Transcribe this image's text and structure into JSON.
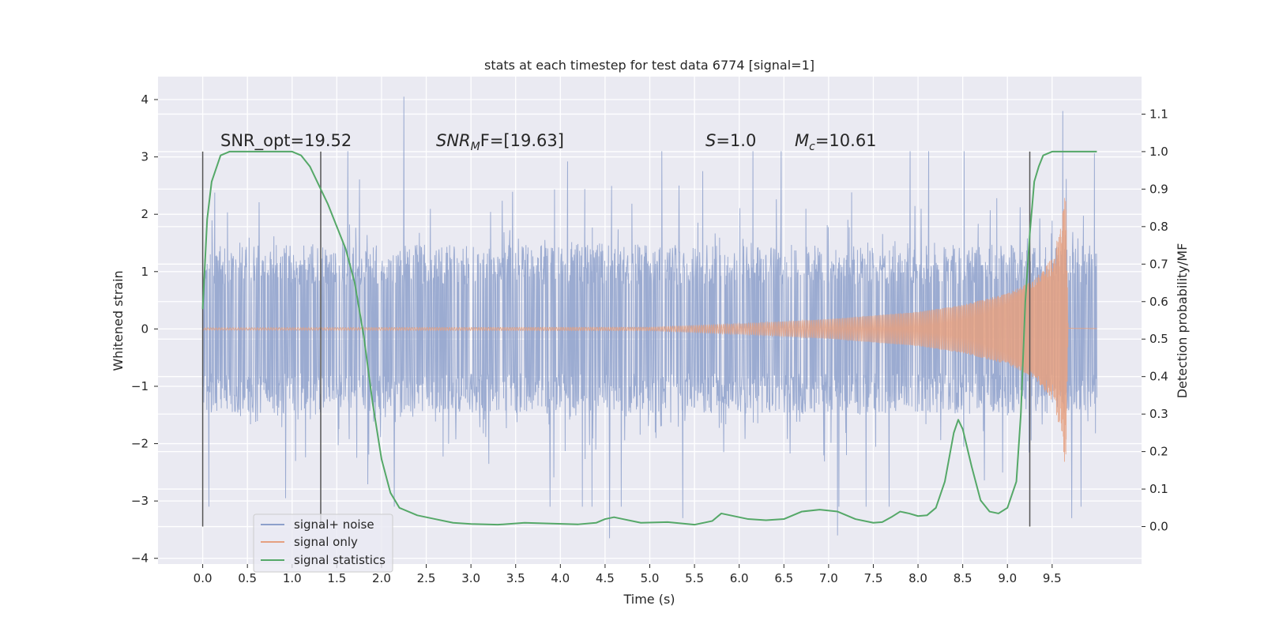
{
  "chart_data": {
    "type": "line",
    "title": "stats at each timestep for test data 6774 [signal=1]",
    "xlabel": "Time (s)",
    "ylabel": "Whitened strain",
    "ylabel_right": "Detection probability/MF",
    "xlim": [
      -0.5,
      10.5
    ],
    "ylim": [
      -4.1,
      4.4
    ],
    "ylim_right": [
      -0.1,
      1.2
    ],
    "x_ticks": [
      "0.0",
      "0.5",
      "1.0",
      "1.5",
      "2.0",
      "2.5",
      "3.0",
      "3.5",
      "4.0",
      "4.5",
      "5.0",
      "5.5",
      "6.0",
      "6.5",
      "7.0",
      "7.5",
      "8.0",
      "8.5",
      "9.0",
      "9.5"
    ],
    "y_ticks": [
      "4",
      "3",
      "2",
      "1",
      "0",
      "−1",
      "−2",
      "−3",
      "−4"
    ],
    "y_ticks_right": [
      "1.1",
      "1.0",
      "0.9",
      "0.8",
      "0.7",
      "0.6",
      "0.5",
      "0.4",
      "0.3",
      "0.2",
      "0.1",
      "0.0"
    ],
    "grid": true,
    "legend_position": "lower-left",
    "colors": {
      "noise": "#8da0cb",
      "signal": "#e5a080",
      "stats": "#55a868",
      "background": "#eaeaf2",
      "marker": "#555555"
    },
    "annotations": {
      "snr_opt": "SNR_opt=19.52",
      "snr_mf_main": "SNR",
      "snr_mf_sub": "M",
      "snr_mf_rest": "F=[19.63]",
      "s_main": "S",
      "s_rest": "=1.0",
      "mc_main": "M",
      "mc_sub": "c",
      "mc_rest": "=10.61"
    },
    "vertical_markers": [
      0.0,
      1.32,
      9.25
    ],
    "series": [
      {
        "name": "signal+ noise",
        "description": "whitened strain, noise dominated, amplitude about ±2.5 with spikes to 4",
        "x_range": [
          0.0,
          10.0
        ],
        "envelope": [
          1.4,
          2.5
        ],
        "peaks": [
          [
            2.25,
            4.05
          ],
          [
            9.62,
            3.8
          ],
          [
            4.55,
            -3.65
          ],
          [
            7.1,
            -3.6
          ],
          [
            5.37,
            -3.3
          ],
          [
            9.72,
            -3.3
          ]
        ]
      },
      {
        "name": "signal only",
        "description": "chirp signal growing toward merger",
        "x": [
          0.0,
          5.0,
          6.0,
          7.0,
          8.0,
          8.5,
          9.0,
          9.3,
          9.5,
          9.6,
          9.65,
          9.68,
          10.0
        ],
        "amplitude": [
          0.02,
          0.03,
          0.09,
          0.17,
          0.3,
          0.42,
          0.62,
          0.85,
          1.25,
          1.8,
          2.55,
          0.03,
          0.02
        ]
      },
      {
        "name": "signal statistics",
        "axis": "right",
        "x": [
          0.0,
          0.05,
          0.1,
          0.2,
          0.3,
          0.5,
          0.8,
          1.0,
          1.1,
          1.2,
          1.3,
          1.4,
          1.5,
          1.6,
          1.7,
          1.8,
          1.9,
          2.0,
          2.1,
          2.2,
          2.4,
          2.6,
          2.8,
          3.0,
          3.3,
          3.6,
          3.9,
          4.2,
          4.4,
          4.5,
          4.6,
          4.7,
          4.9,
          5.2,
          5.5,
          5.7,
          5.8,
          5.9,
          6.1,
          6.3,
          6.5,
          6.7,
          6.9,
          7.1,
          7.3,
          7.5,
          7.6,
          7.7,
          7.8,
          7.9,
          8.0,
          8.1,
          8.2,
          8.3,
          8.4,
          8.45,
          8.5,
          8.6,
          8.7,
          8.8,
          8.9,
          9.0,
          9.1,
          9.15,
          9.2,
          9.25,
          9.3,
          9.35,
          9.4,
          9.5,
          9.6,
          9.7,
          10.0
        ],
        "y": [
          0.58,
          0.82,
          0.92,
          0.99,
          1.0,
          1.0,
          1.0,
          1.0,
          0.99,
          0.96,
          0.91,
          0.86,
          0.8,
          0.74,
          0.65,
          0.51,
          0.33,
          0.18,
          0.09,
          0.05,
          0.03,
          0.02,
          0.01,
          0.007,
          0.005,
          0.01,
          0.008,
          0.006,
          0.01,
          0.02,
          0.025,
          0.02,
          0.01,
          0.012,
          0.005,
          0.015,
          0.035,
          0.03,
          0.02,
          0.017,
          0.02,
          0.04,
          0.045,
          0.04,
          0.02,
          0.01,
          0.012,
          0.025,
          0.04,
          0.035,
          0.028,
          0.03,
          0.05,
          0.12,
          0.25,
          0.285,
          0.26,
          0.16,
          0.07,
          0.04,
          0.035,
          0.05,
          0.12,
          0.3,
          0.6,
          0.78,
          0.92,
          0.96,
          0.99,
          1.0,
          1.0,
          1.0,
          1.0
        ]
      }
    ]
  }
}
